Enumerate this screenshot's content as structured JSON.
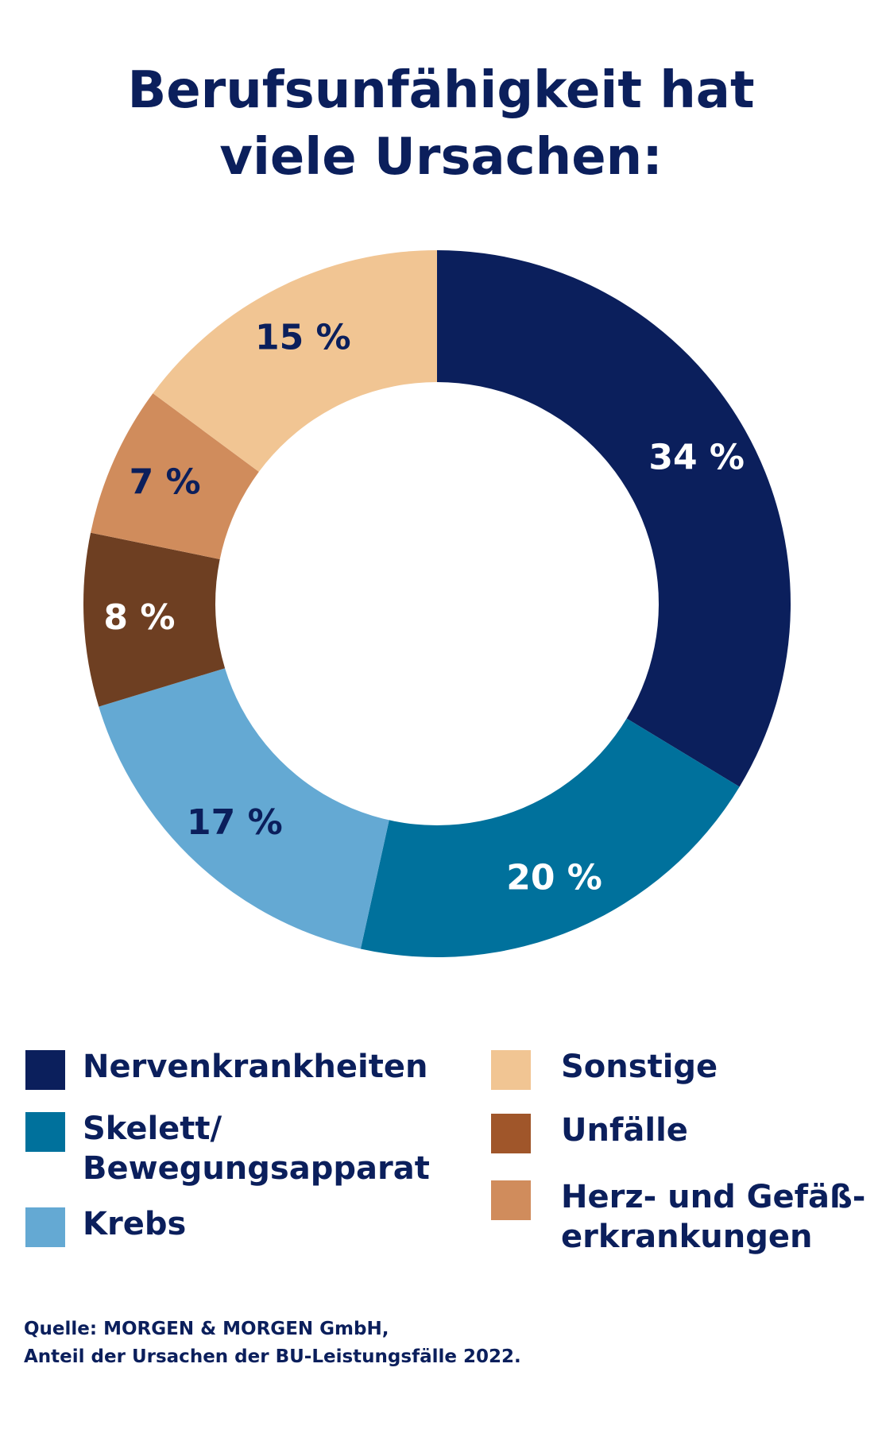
{
  "title": {
    "line1": "Berufsunfähigkeit hat",
    "line2": "viele Ursachen:"
  },
  "chart_data": {
    "type": "pie",
    "donut": true,
    "title": "Berufsunfähigkeit hat viele Ursachen:",
    "unit": "%",
    "slices": [
      {
        "name": "Nervenkrankheiten",
        "value": 34,
        "label": "34 %",
        "color": "#0b1f5c",
        "label_color": "#ffffff"
      },
      {
        "name": "Skelett/Bewegungsapparat",
        "value": 20,
        "label": "20 %",
        "color": "#00719c",
        "label_color": "#ffffff"
      },
      {
        "name": "Krebs",
        "value": 17,
        "label": "17 %",
        "color": "#64a9d3",
        "label_color": "#0b1f5c"
      },
      {
        "name": "Unfälle",
        "value": 8,
        "label": "8 %",
        "color": "#6e3f22",
        "label_color": "#ffffff"
      },
      {
        "name": "Herz- und Gefäßerkrankungen",
        "value": 7,
        "label": "7 %",
        "color": "#d08c5c",
        "label_color": "#0b1f5c"
      },
      {
        "name": "Sonstige",
        "value": 15,
        "label": "15 %",
        "color": "#f1c593",
        "label_color": "#0b1f5c"
      }
    ]
  },
  "legend": {
    "nerven": {
      "line1": "Nervenkrankheiten",
      "color": "#0b1f5c"
    },
    "skelett": {
      "line1": "Skelett/",
      "line2": "Bewegungsapparat",
      "color": "#00719c"
    },
    "krebs": {
      "line1": "Krebs",
      "color": "#64a9d3"
    },
    "sonstige": {
      "line1": "Sonstige",
      "color": "#f1c593"
    },
    "unfaelle": {
      "line1": "Unfälle",
      "color": "#a0562a"
    },
    "herz": {
      "line1": "Herz- und Gefäß-",
      "line2": "erkrankungen",
      "color": "#d08c5c"
    }
  },
  "source": {
    "line1": "Quelle: MORGEN & MORGEN GmbH,",
    "line2": "Anteil der Ursachen der BU-Leistungsfälle 2022."
  }
}
